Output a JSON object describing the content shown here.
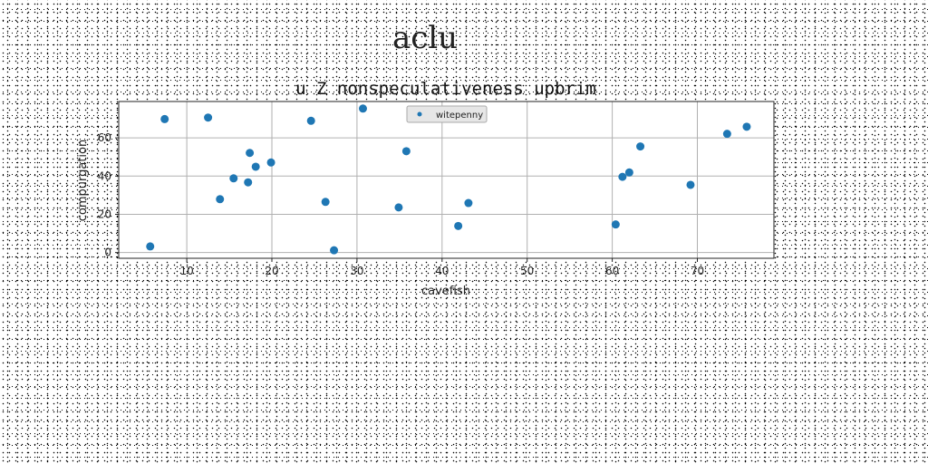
{
  "figure_title": "aclu",
  "chart_data": {
    "type": "scatter",
    "title": "u Z nonspeculativeness upbrim",
    "xlabel": "cavefish",
    "ylabel": "compurgation",
    "xlim": [
      2,
      79
    ],
    "ylim": [
      -3,
      79
    ],
    "xticks": [
      10,
      20,
      30,
      40,
      50,
      60,
      70
    ],
    "yticks": [
      0,
      20,
      40,
      60
    ],
    "grid": true,
    "legend_position": "top-center",
    "series": [
      {
        "name": "witepenny",
        "color": "#1f77b4",
        "points": [
          [
            5.7,
            3.2
          ],
          [
            7.4,
            69.8
          ],
          [
            12.5,
            70.6
          ],
          [
            13.9,
            27.9
          ],
          [
            15.5,
            38.8
          ],
          [
            17.2,
            36.7
          ],
          [
            17.4,
            52.1
          ],
          [
            18.1,
            44.9
          ],
          [
            19.9,
            47.1
          ],
          [
            24.6,
            68.9
          ],
          [
            26.3,
            26.5
          ],
          [
            27.3,
            1.2
          ],
          [
            30.7,
            75.3
          ],
          [
            34.9,
            23.6
          ],
          [
            35.8,
            53.0
          ],
          [
            41.9,
            13.9
          ],
          [
            43.1,
            25.9
          ],
          [
            60.4,
            14.7
          ],
          [
            61.2,
            39.6
          ],
          [
            62.0,
            41.9
          ],
          [
            63.3,
            55.5
          ],
          [
            69.2,
            35.4
          ],
          [
            73.5,
            62.1
          ],
          [
            75.8,
            65.8
          ]
        ]
      }
    ]
  }
}
